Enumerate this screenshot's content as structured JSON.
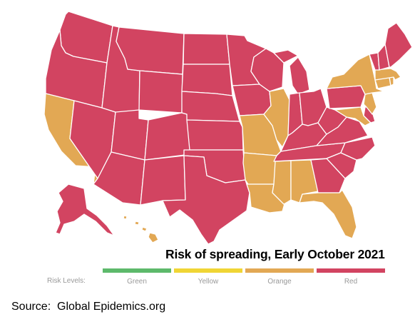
{
  "map": {
    "title": "Risk of spreading, Early October 2021",
    "legend_caption": "Risk Levels:",
    "levels": [
      {
        "label": "Green",
        "color": "#5db96b"
      },
      {
        "label": "Yellow",
        "color": "#f0d535"
      },
      {
        "label": "Orange",
        "color": "#e2a854"
      },
      {
        "label": "Red",
        "color": "#d24461"
      }
    ],
    "level_by_region": {
      "WA": "Red",
      "OR": "Red",
      "CA": "Orange",
      "NV": "Red",
      "ID": "Red",
      "MT": "Red",
      "WY": "Red",
      "UT": "Red",
      "AZ": "Red",
      "CO": "Red",
      "NM": "Red",
      "ND": "Red",
      "SD": "Red",
      "NE": "Red",
      "KS": "Red",
      "OK": "Red",
      "TX": "Red",
      "MN": "Red",
      "IA": "Red",
      "MO": "Orange",
      "AR": "Orange",
      "LA": "Orange",
      "WI": "Red",
      "IL": "Orange",
      "MI": "Red",
      "IN": "Red",
      "OH": "Red",
      "KY": "Red",
      "TN": "Red",
      "MS": "Orange",
      "AL": "Orange",
      "GA": "Red",
      "FL": "Orange",
      "SC": "Red",
      "NC": "Red",
      "VA": "Red",
      "WV": "Red",
      "MD": "Orange",
      "DE": "Red",
      "NJ": "Orange",
      "PA": "Red",
      "NY": "Orange",
      "CT": "Orange",
      "RI": "Orange",
      "MA": "Orange",
      "VT": "Red",
      "NH": "Red",
      "ME": "Red",
      "AK": "Red",
      "HI": "Orange"
    }
  },
  "source_note": "Source:  Global Epidemics.org"
}
